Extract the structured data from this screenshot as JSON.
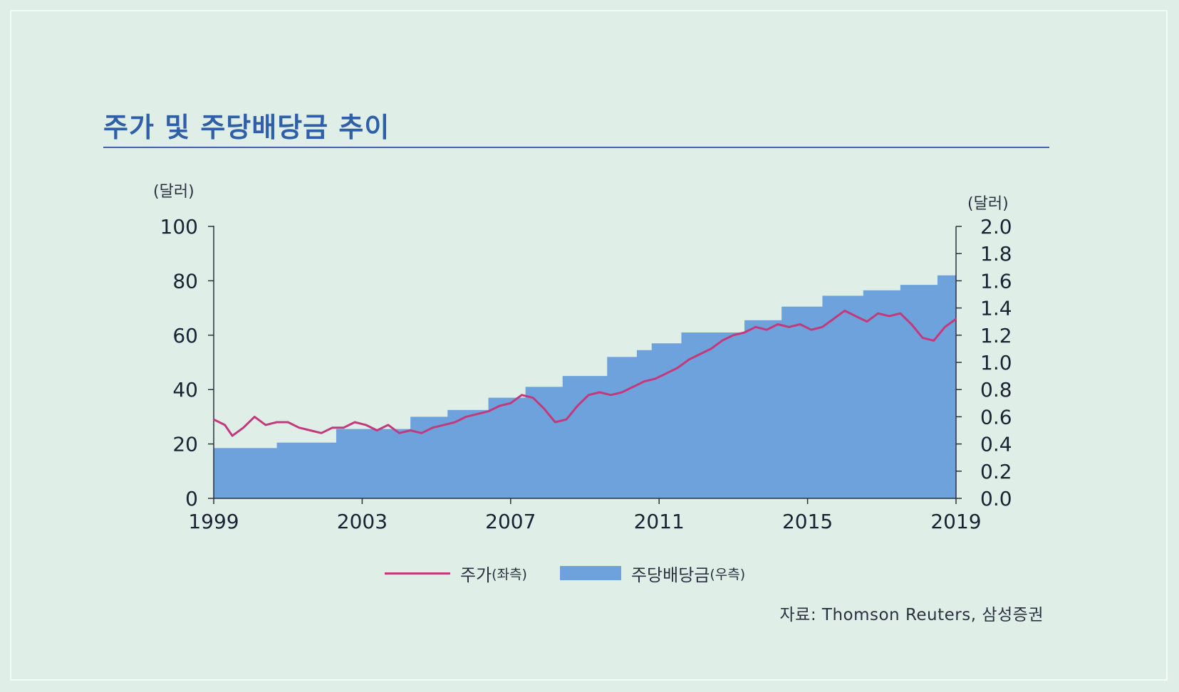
{
  "title": "주가 및 주당배당금 추이",
  "source": "자료: Thomson Reuters, 삼성증권",
  "legend": {
    "line_label": "주가",
    "line_suffix": "(좌측)",
    "bar_label": "주당배당금",
    "bar_suffix": "(우측)"
  },
  "colors": {
    "price_line": "#c33a7c",
    "dividend_bars": "#6ea2dc",
    "title": "#2f5fa8"
  },
  "chart_data": {
    "type": "bar+line",
    "left_axis": {
      "unit": "(달러)",
      "ticks": [
        0,
        20,
        40,
        60,
        80,
        100
      ],
      "range": [
        0,
        100
      ]
    },
    "right_axis": {
      "unit": "(달러)",
      "ticks": [
        "0.0",
        "0.2",
        "0.4",
        "0.6",
        "0.8",
        "1.0",
        "1.2",
        "1.4",
        "1.6",
        "1.8",
        "2.0"
      ],
      "range": [
        0,
        2.0
      ]
    },
    "x_axis": {
      "ticks": [
        "1999",
        "2003",
        "2007",
        "2011",
        "2015",
        "2019"
      ],
      "range": [
        1999,
        2019
      ]
    },
    "series": [
      {
        "name": "주가",
        "axis": "left",
        "type": "line",
        "x": [
          1999.0,
          1999.3,
          1999.5,
          1999.8,
          2000.1,
          2000.4,
          2000.7,
          2001.0,
          2001.3,
          2001.6,
          2001.9,
          2002.2,
          2002.5,
          2002.8,
          2003.1,
          2003.4,
          2003.7,
          2004.0,
          2004.3,
          2004.6,
          2004.9,
          2005.2,
          2005.5,
          2005.8,
          2006.1,
          2006.4,
          2006.7,
          2007.0,
          2007.3,
          2007.6,
          2007.9,
          2008.2,
          2008.5,
          2008.8,
          2009.1,
          2009.4,
          2009.7,
          2010.0,
          2010.3,
          2010.6,
          2010.9,
          2011.2,
          2011.5,
          2011.8,
          2012.1,
          2012.4,
          2012.7,
          2013.0,
          2013.3,
          2013.6,
          2013.9,
          2014.2,
          2014.5,
          2014.8,
          2015.1,
          2015.4,
          2015.7,
          2016.0,
          2016.3,
          2016.6,
          2016.9,
          2017.2,
          2017.5,
          2017.8,
          2018.1,
          2018.4,
          2018.7,
          2019.0
        ],
        "values": [
          29,
          27,
          23,
          26,
          30,
          27,
          28,
          28,
          26,
          25,
          24,
          26,
          26,
          28,
          27,
          25,
          27,
          24,
          25,
          24,
          26,
          27,
          28,
          30,
          31,
          32,
          34,
          35,
          38,
          37,
          33,
          28,
          29,
          34,
          38,
          39,
          38,
          39,
          41,
          43,
          44,
          46,
          48,
          51,
          53,
          55,
          58,
          60,
          61,
          63,
          62,
          64,
          63,
          64,
          62,
          63,
          66,
          69,
          67,
          65,
          68,
          67,
          68,
          64,
          59,
          58,
          63,
          66
        ]
      },
      {
        "name": "주당배당금",
        "axis": "right",
        "type": "step-area",
        "x_start": [
          1999.0,
          2000.7,
          2002.3,
          2004.3,
          2005.3,
          2006.4,
          2007.4,
          2008.4,
          2009.6,
          2010.4,
          2010.8,
          2011.6,
          2013.3,
          2014.3,
          2015.4,
          2016.5,
          2017.5,
          2018.5
        ],
        "values": [
          0.37,
          0.41,
          0.51,
          0.6,
          0.65,
          0.74,
          0.82,
          0.9,
          1.04,
          1.09,
          1.14,
          1.22,
          1.31,
          1.41,
          1.49,
          1.53,
          1.57,
          1.64
        ]
      }
    ]
  }
}
